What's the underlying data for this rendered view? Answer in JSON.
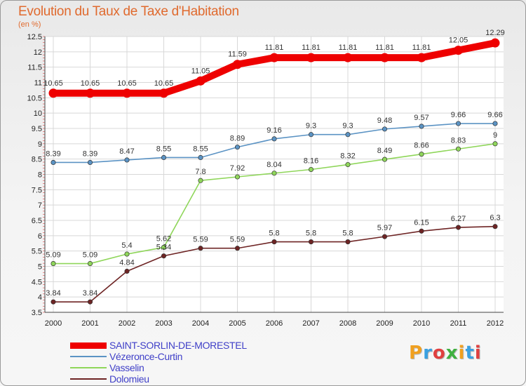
{
  "title": "Evolution du Taux de Taxe d'Habitation",
  "subtitle": "(en %)",
  "logo": {
    "letters": [
      "P",
      "r",
      "o",
      "x",
      "i",
      "t",
      "i"
    ],
    "colors": [
      "#f0a020",
      "#3aa0e0",
      "#e04040",
      "#40b040",
      "#f0a020",
      "#3aa0e0",
      "#e04040"
    ]
  },
  "chart_data": {
    "type": "line",
    "x": [
      "2000",
      "2001",
      "2002",
      "2003",
      "2004",
      "2005",
      "2006",
      "2007",
      "2008",
      "2009",
      "2010",
      "2011",
      "2012"
    ],
    "ylim": [
      3.5,
      12.5
    ],
    "yticks": [
      "3.5",
      "4",
      "4.5",
      "5",
      "5.5",
      "6",
      "6.5",
      "7",
      "7.5",
      "8",
      "8.5",
      "9",
      "9.5",
      "10",
      "10.5",
      "11",
      "11.5",
      "12",
      "12.5"
    ],
    "grid": true,
    "legend_position": "bottom-left",
    "series": [
      {
        "name": "SAINT-SORLIN-DE-MORESTEL",
        "color": "#ee0000",
        "style": "thick",
        "values": [
          10.65,
          10.65,
          10.65,
          10.65,
          11.05,
          11.59,
          11.81,
          11.81,
          11.81,
          11.81,
          11.81,
          12.05,
          12.29
        ],
        "labels": [
          "10.65",
          "10.65",
          "10.65",
          "10.65",
          "11.05",
          "11.59",
          "11.81",
          "11.81",
          "11.81",
          "11.81",
          "11.81",
          "12.05",
          "12.29"
        ]
      },
      {
        "name": "Vézeronce-Curtin",
        "color": "#5b93c4",
        "values": [
          8.39,
          8.39,
          8.47,
          8.55,
          8.55,
          8.89,
          9.16,
          9.3,
          9.3,
          9.48,
          9.57,
          9.66,
          9.66
        ],
        "labels": [
          "8.39",
          "8.39",
          "8.47",
          "8.55",
          "8.55",
          "8.89",
          "9.16",
          "9.3",
          "9.3",
          "9.48",
          "9.57",
          "9.66",
          "9.66"
        ]
      },
      {
        "name": "Vasselin",
        "color": "#8fd65a",
        "values": [
          5.09,
          5.09,
          5.4,
          5.62,
          7.8,
          7.92,
          8.04,
          8.16,
          8.32,
          8.49,
          8.66,
          8.83,
          9
        ],
        "labels": [
          "5.09",
          "5.09",
          "5.4",
          "5.62",
          "7.8",
          "7.92",
          "8.04",
          "8.16",
          "8.32",
          "8.49",
          "8.66",
          "8.83",
          "9"
        ]
      },
      {
        "name": "Dolomieu",
        "color": "#6e2424",
        "values": [
          3.84,
          3.84,
          4.84,
          5.34,
          5.59,
          5.59,
          5.8,
          5.8,
          5.8,
          5.97,
          6.15,
          6.27,
          6.3
        ],
        "labels": [
          "3.84",
          "3.84",
          "4.84",
          "5.34",
          "5.59",
          "5.59",
          "5.8",
          "5.8",
          "5.8",
          "5.97",
          "6.15",
          "6.27",
          "6.3"
        ]
      }
    ]
  }
}
